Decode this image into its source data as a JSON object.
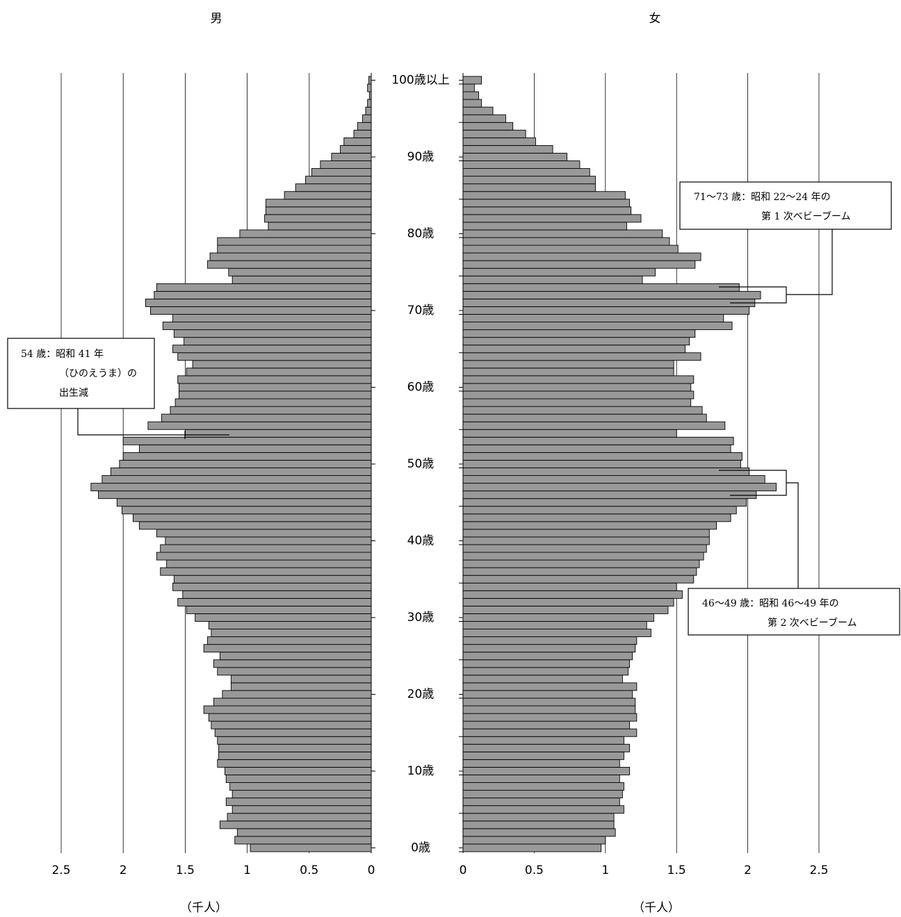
{
  "chart_data": {
    "type": "pyramid",
    "categories": [
      "0歳",
      null,
      null,
      null,
      null,
      null,
      null,
      null,
      null,
      null,
      "10歳",
      null,
      null,
      null,
      null,
      null,
      null,
      null,
      null,
      null,
      "20歳",
      null,
      null,
      null,
      null,
      null,
      null,
      null,
      null,
      null,
      "30歳",
      null,
      null,
      null,
      null,
      null,
      null,
      null,
      null,
      null,
      "40歳",
      null,
      null,
      null,
      null,
      null,
      null,
      null,
      null,
      null,
      "50歳",
      null,
      null,
      null,
      null,
      null,
      null,
      null,
      null,
      null,
      "60歳",
      null,
      null,
      null,
      null,
      null,
      null,
      null,
      null,
      null,
      "70歳",
      null,
      null,
      null,
      null,
      null,
      null,
      null,
      null,
      null,
      "80歳",
      null,
      null,
      null,
      null,
      null,
      null,
      null,
      null,
      null,
      "90歳",
      null,
      null,
      null,
      null,
      null,
      null,
      null,
      null,
      null,
      "100歳以上"
    ],
    "series": [
      {
        "name": "男",
        "color": "#999999",
        "values": [
          0.975,
          1.1,
          1.08,
          1.22,
          1.16,
          1.12,
          1.17,
          1.12,
          1.14,
          1.17,
          1.18,
          1.24,
          1.23,
          1.23,
          1.24,
          1.26,
          1.29,
          1.31,
          1.35,
          1.27,
          1.2,
          1.13,
          1.13,
          1.24,
          1.27,
          1.22,
          1.35,
          1.32,
          1.29,
          1.31,
          1.42,
          1.49,
          1.56,
          1.52,
          1.6,
          1.59,
          1.7,
          1.65,
          1.73,
          1.7,
          1.66,
          1.73,
          1.87,
          1.92,
          2.01,
          2.05,
          2.2,
          2.26,
          2.17,
          2.1,
          2.03,
          2.0,
          1.87,
          2.0,
          1.5,
          1.8,
          1.69,
          1.62,
          1.58,
          1.55,
          1.55,
          1.56,
          1.49,
          1.44,
          1.56,
          1.6,
          1.51,
          1.59,
          1.68,
          1.6,
          1.78,
          1.82,
          1.75,
          1.73,
          1.12,
          1.15,
          1.32,
          1.3,
          1.24,
          1.24,
          1.06,
          0.83,
          0.86,
          0.85,
          0.85,
          0.7,
          0.61,
          0.53,
          0.48,
          0.41,
          0.32,
          0.25,
          0.22,
          0.14,
          0.11,
          0.07,
          0.045,
          0.03,
          0.015,
          0.03,
          0.02
        ]
      },
      {
        "name": "女",
        "color": "#999999",
        "values": [
          0.97,
          1.0,
          1.07,
          1.06,
          1.06,
          1.13,
          1.1,
          1.12,
          1.13,
          1.1,
          1.17,
          1.1,
          1.13,
          1.17,
          1.13,
          1.22,
          1.17,
          1.22,
          1.21,
          1.21,
          1.19,
          1.22,
          1.12,
          1.16,
          1.17,
          1.19,
          1.21,
          1.22,
          1.32,
          1.29,
          1.34,
          1.44,
          1.48,
          1.54,
          1.5,
          1.62,
          1.64,
          1.66,
          1.69,
          1.71,
          1.73,
          1.73,
          1.78,
          1.88,
          1.92,
          1.99,
          2.06,
          2.2,
          2.12,
          2.01,
          1.95,
          1.96,
          1.88,
          1.9,
          1.5,
          1.84,
          1.71,
          1.68,
          1.6,
          1.62,
          1.6,
          1.62,
          1.48,
          1.48,
          1.67,
          1.56,
          1.59,
          1.63,
          1.89,
          1.83,
          2.01,
          2.05,
          2.09,
          1.94,
          1.26,
          1.35,
          1.63,
          1.67,
          1.51,
          1.45,
          1.4,
          1.15,
          1.25,
          1.18,
          1.17,
          1.14,
          0.93,
          0.93,
          0.89,
          0.82,
          0.73,
          0.63,
          0.51,
          0.44,
          0.35,
          0.3,
          0.21,
          0.13,
          0.11,
          0.08,
          0.13
        ]
      }
    ],
    "xlim": [
      0,
      2.5
    ],
    "xticks": [
      0,
      0.5,
      1,
      1.5,
      2,
      2.5
    ],
    "xlabel": "（千人）",
    "grid": true,
    "annotations": [
      {
        "lines": [
          "54 歳：昭和 41 年",
          "（ひのえうま）の",
          "出生減"
        ]
      },
      {
        "lines": [
          "71～73 歳：昭和 22～24 年の",
          "第 1 次ベビーブーム"
        ]
      },
      {
        "lines": [
          "46～49 歳：昭和 46～49 年の",
          "第 2 次ベビーブーム"
        ]
      }
    ]
  }
}
